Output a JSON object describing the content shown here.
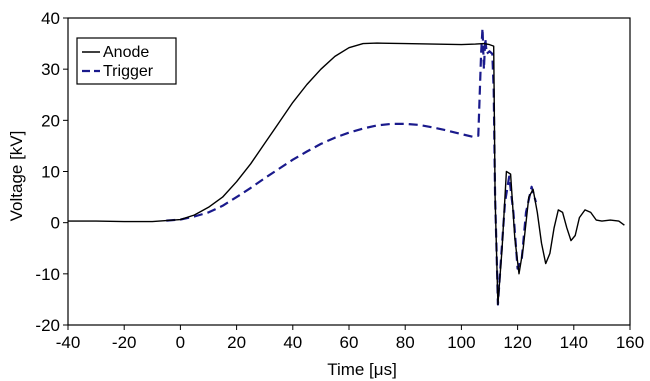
{
  "chart_data": {
    "type": "line",
    "title": "",
    "xlabel": "Time [μs]",
    "ylabel": "Voltage [kV]",
    "xlim": [
      -40,
      160
    ],
    "ylim": [
      -20,
      40
    ],
    "x_ticks": [
      -40,
      -20,
      0,
      20,
      40,
      60,
      80,
      100,
      120,
      140,
      160
    ],
    "y_ticks": [
      -20,
      -10,
      0,
      10,
      20,
      30,
      40
    ],
    "grid": false,
    "legend_position": "top-left",
    "series": [
      {
        "name": "Anode",
        "color": "#000000",
        "style": "solid",
        "points": [
          [
            -40,
            0.3
          ],
          [
            -30,
            0.3
          ],
          [
            -20,
            0.2
          ],
          [
            -10,
            0.2
          ],
          [
            -5,
            0.4
          ],
          [
            0,
            0.6
          ],
          [
            5,
            1.5
          ],
          [
            10,
            3.0
          ],
          [
            15,
            5.0
          ],
          [
            20,
            8.0
          ],
          [
            25,
            11.5
          ],
          [
            30,
            15.5
          ],
          [
            35,
            19.5
          ],
          [
            40,
            23.5
          ],
          [
            45,
            27.0
          ],
          [
            50,
            30.0
          ],
          [
            55,
            32.5
          ],
          [
            60,
            34.2
          ],
          [
            65,
            35.0
          ],
          [
            70,
            35.1
          ],
          [
            80,
            35.0
          ],
          [
            90,
            34.9
          ],
          [
            100,
            34.8
          ],
          [
            105,
            34.9
          ],
          [
            108,
            35.0
          ],
          [
            110,
            34.8
          ],
          [
            111.5,
            34.5
          ],
          [
            112,
            5.0
          ],
          [
            113,
            -16.0
          ],
          [
            114.5,
            -5.0
          ],
          [
            116,
            10.0
          ],
          [
            117.5,
            9.5
          ],
          [
            119,
            -3.0
          ],
          [
            120.5,
            -10.0
          ],
          [
            122,
            -5.0
          ],
          [
            124,
            5.0
          ],
          [
            125.5,
            6.5
          ],
          [
            127,
            2.0
          ],
          [
            128.5,
            -4.0
          ],
          [
            130,
            -8.0
          ],
          [
            131.5,
            -6.0
          ],
          [
            133,
            -1.0
          ],
          [
            134.5,
            2.5
          ],
          [
            136,
            2.0
          ],
          [
            137.5,
            -1.0
          ],
          [
            139,
            -3.5
          ],
          [
            140.5,
            -2.5
          ],
          [
            142,
            1.0
          ],
          [
            144,
            2.5
          ],
          [
            146,
            2.0
          ],
          [
            148,
            0.5
          ],
          [
            150,
            0.3
          ],
          [
            153,
            0.5
          ],
          [
            156,
            0.3
          ],
          [
            158,
            -0.5
          ]
        ]
      },
      {
        "name": "Trigger",
        "color": "#1a1a8c",
        "style": "dashed",
        "points": [
          [
            -5,
            0.4
          ],
          [
            0,
            0.6
          ],
          [
            5,
            1.2
          ],
          [
            10,
            2.0
          ],
          [
            15,
            3.3
          ],
          [
            20,
            5.0
          ],
          [
            25,
            6.8
          ],
          [
            30,
            8.7
          ],
          [
            35,
            10.5
          ],
          [
            40,
            12.3
          ],
          [
            45,
            13.9
          ],
          [
            50,
            15.4
          ],
          [
            55,
            16.6
          ],
          [
            60,
            17.6
          ],
          [
            65,
            18.4
          ],
          [
            70,
            19.0
          ],
          [
            75,
            19.3
          ],
          [
            80,
            19.3
          ],
          [
            85,
            19.1
          ],
          [
            90,
            18.6
          ],
          [
            95,
            18.0
          ],
          [
            100,
            17.3
          ],
          [
            104,
            16.8
          ],
          [
            106,
            17.0
          ],
          [
            107,
            33.0
          ],
          [
            107.5,
            38.0
          ],
          [
            108,
            30.0
          ],
          [
            108.5,
            36.0
          ],
          [
            109,
            33.0
          ],
          [
            110,
            33.5
          ],
          [
            111,
            33.0
          ],
          [
            111.5,
            26.0
          ],
          [
            112,
            5.0
          ],
          [
            112.5,
            -5.0
          ],
          [
            113,
            -16.0
          ],
          [
            114,
            -8.0
          ],
          [
            115.5,
            4.0
          ],
          [
            117,
            9.0
          ],
          [
            118.5,
            2.0
          ],
          [
            120,
            -9.0
          ],
          [
            121.5,
            -7.0
          ],
          [
            123,
            2.0
          ],
          [
            125,
            7.0
          ],
          [
            126.5,
            4.0
          ]
        ]
      }
    ]
  }
}
